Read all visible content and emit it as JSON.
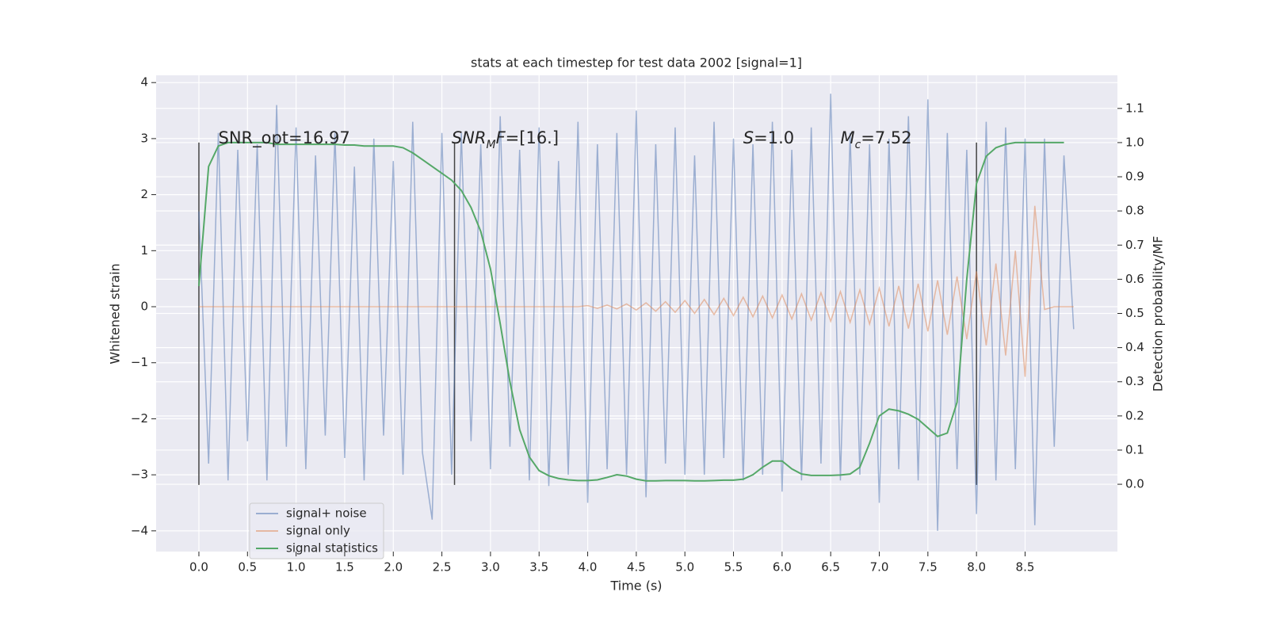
{
  "chart_data": {
    "type": "line",
    "title": "stats at each timestep for test data 2002 [signal=1]",
    "xlabel": "Time (s)",
    "ylabel": "Whitened strain",
    "y2label": "Detection probability/MF",
    "xlim": [
      -0.44,
      9.45
    ],
    "ylim": [
      -4.37,
      4.13
    ],
    "y2lim": [
      -0.197,
      1.197
    ],
    "xticks": [
      {
        "value": 0,
        "label": "0.0"
      },
      {
        "value": 0.5,
        "label": "0.5"
      },
      {
        "value": 1,
        "label": "1.0"
      },
      {
        "value": 1.5,
        "label": "1.5"
      },
      {
        "value": 2,
        "label": "2.0"
      },
      {
        "value": 2.5,
        "label": "2.5"
      },
      {
        "value": 3,
        "label": "3.0"
      },
      {
        "value": 3.5,
        "label": "3.5"
      },
      {
        "value": 4,
        "label": "4.0"
      },
      {
        "value": 4.5,
        "label": "4.5"
      },
      {
        "value": 5,
        "label": "5.0"
      },
      {
        "value": 5.5,
        "label": "5.5"
      },
      {
        "value": 6,
        "label": "6.0"
      },
      {
        "value": 6.5,
        "label": "6.5"
      },
      {
        "value": 7,
        "label": "7.0"
      },
      {
        "value": 7.5,
        "label": "7.5"
      },
      {
        "value": 8,
        "label": "8.0"
      },
      {
        "value": 8.5,
        "label": "8.5"
      }
    ],
    "yticks": [
      {
        "value": -4,
        "label": "−4"
      },
      {
        "value": -3,
        "label": "−3"
      },
      {
        "value": -2,
        "label": "−2"
      },
      {
        "value": -1,
        "label": "−1"
      },
      0,
      1,
      2,
      3,
      4
    ],
    "y2ticks": [
      {
        "value": 0,
        "label": "0.0"
      },
      {
        "value": 0.1,
        "label": "0.1"
      },
      {
        "value": 0.2,
        "label": "0.2"
      },
      {
        "value": 0.3,
        "label": "0.3"
      },
      {
        "value": 0.4,
        "label": "0.4"
      },
      {
        "value": 0.5,
        "label": "0.5"
      },
      {
        "value": 0.6,
        "label": "0.6"
      },
      {
        "value": 0.7,
        "label": "0.7"
      },
      {
        "value": 0.8,
        "label": "0.8"
      },
      {
        "value": 0.9,
        "label": "0.9"
      },
      {
        "value": 1,
        "label": "1.0"
      },
      {
        "value": 1.1,
        "label": "1.1"
      }
    ],
    "grid": true,
    "legend": "lower left",
    "x": [
      0,
      0.1,
      0.2,
      0.3,
      0.4,
      0.5,
      0.6,
      0.7,
      0.8,
      0.9,
      1,
      1.1,
      1.2,
      1.3,
      1.4,
      1.5,
      1.6,
      1.7,
      1.8,
      1.9,
      2,
      2.1,
      2.2,
      2.3,
      2.4,
      2.5,
      2.6,
      2.7,
      2.8,
      2.9,
      3,
      3.1,
      3.2,
      3.3,
      3.4,
      3.5,
      3.6,
      3.7,
      3.8,
      3.9,
      4,
      4.1,
      4.2,
      4.3,
      4.4,
      4.5,
      4.6,
      4.7,
      4.8,
      4.9,
      5,
      5.1,
      5.2,
      5.3,
      5.4,
      5.5,
      5.6,
      5.7,
      5.8,
      5.9,
      6,
      6.1,
      6.2,
      6.3,
      6.4,
      6.5,
      6.6,
      6.7,
      6.8,
      6.9,
      7,
      7.1,
      7.2,
      7.3,
      7.4,
      7.5,
      7.6,
      7.7,
      7.8,
      7.9,
      8,
      8.1,
      8.2,
      8.3,
      8.4,
      8.5,
      8.6,
      8.7,
      8.8,
      8.9,
      9
    ],
    "series": [
      {
        "name": "signal+ noise",
        "color": "#4c72b0",
        "opacity": 0.5,
        "values": [
          1.7,
          -2.8,
          3.1,
          -3.1,
          2.8,
          -2.4,
          2.9,
          -3.1,
          3.6,
          -2.5,
          3.2,
          -2.9,
          2.7,
          -2.3,
          3.1,
          -2.7,
          2.5,
          -3.1,
          3.0,
          -2.3,
          2.6,
          -3.0,
          3.3,
          -2.6,
          -3.8,
          3.1,
          -3.0,
          3.1,
          -2.4,
          2.9,
          -2.9,
          3.4,
          -2.5,
          2.8,
          -3.1,
          3.2,
          -3.2,
          2.6,
          -3.0,
          3.3,
          -3.5,
          2.9,
          -2.9,
          3.1,
          -3.0,
          3.5,
          -3.4,
          2.9,
          -2.8,
          3.2,
          -3.0,
          2.7,
          -3.0,
          3.3,
          -2.7,
          3.0,
          -3.1,
          2.9,
          -3.0,
          3.3,
          -3.3,
          2.8,
          -3.1,
          3.2,
          -2.8,
          3.8,
          -3.1,
          3.1,
          -3.0,
          2.9,
          -3.5,
          3.0,
          -2.9,
          3.4,
          -3.1,
          3.7,
          -4.0,
          3.1,
          -2.9,
          2.8,
          -3.7,
          3.3,
          -3.1,
          3.2,
          -2.9,
          3.0,
          -3.9,
          3.0,
          -2.5,
          2.7,
          -0.4
        ]
      },
      {
        "name": "signal only",
        "color": "#dd8452",
        "opacity": 0.5,
        "values": [
          0,
          0,
          0,
          0,
          0,
          0,
          0,
          0,
          0,
          0,
          0,
          0,
          0,
          0,
          0,
          0,
          0,
          0,
          0,
          0,
          0,
          0,
          0,
          0,
          0,
          0,
          0,
          0,
          0,
          0,
          0,
          0,
          0,
          0,
          0,
          0,
          0,
          0,
          0,
          0,
          0.02,
          -0.03,
          0.03,
          -0.04,
          0.05,
          -0.06,
          0.07,
          -0.08,
          0.09,
          -0.1,
          0.11,
          -0.12,
          0.13,
          -0.14,
          0.15,
          -0.16,
          0.17,
          -0.18,
          0.19,
          -0.2,
          0.21,
          -0.22,
          0.23,
          -0.24,
          0.25,
          -0.26,
          0.27,
          -0.28,
          0.3,
          -0.31,
          0.33,
          -0.35,
          0.37,
          -0.39,
          0.41,
          -0.44,
          0.47,
          -0.5,
          0.54,
          -0.58,
          0.63,
          -0.69,
          0.77,
          -0.87,
          1.0,
          -1.25,
          1.8,
          -0.05,
          0,
          0,
          0
        ]
      },
      {
        "name": "signal statistics",
        "color": "#55a868",
        "opacity": 1,
        "axis": "y2",
        "values": [
          0.58,
          0.93,
          0.99,
          1.0,
          1.0,
          1.0,
          1.0,
          1.0,
          0.995,
          0.995,
          0.995,
          0.995,
          0.995,
          0.995,
          0.995,
          0.993,
          0.993,
          0.99,
          0.99,
          0.99,
          0.99,
          0.985,
          0.97,
          0.95,
          0.93,
          0.91,
          0.89,
          0.86,
          0.81,
          0.74,
          0.63,
          0.47,
          0.3,
          0.16,
          0.08,
          0.04,
          0.025,
          0.017,
          0.013,
          0.011,
          0.011,
          0.013,
          0.02,
          0.028,
          0.024,
          0.015,
          0.01,
          0.01,
          0.011,
          0.011,
          0.011,
          0.01,
          0.01,
          0.011,
          0.012,
          0.012,
          0.015,
          0.028,
          0.05,
          0.068,
          0.068,
          0.045,
          0.03,
          0.026,
          0.026,
          0.026,
          0.027,
          0.03,
          0.05,
          0.12,
          0.2,
          0.22,
          0.215,
          0.205,
          0.19,
          0.165,
          0.14,
          0.15,
          0.24,
          0.6,
          0.88,
          0.96,
          0.985,
          0.995,
          1.0,
          1.0,
          1.0,
          1.0,
          1.0,
          1.0,
          null
        ]
      }
    ],
    "vlines": [
      {
        "x": 0,
        "ymin": -3.18,
        "ymax": 2.93
      },
      {
        "x": 2.63,
        "ymin": -3.18,
        "ymax": 2.93
      },
      {
        "x": 8.0,
        "ymin": -3.18,
        "ymax": 2.93
      }
    ],
    "vline_color": "#444444",
    "annotations": [
      {
        "x": 0.2,
        "y": 3.0,
        "parts": [
          {
            "t": "SNR_opt=16.97"
          }
        ]
      },
      {
        "x": 2.6,
        "y": 3.0,
        "parts": [
          {
            "t": "SNR",
            "i": true
          },
          {
            "t": "M",
            "i": true,
            "sub": true
          },
          {
            "t": "F",
            "i": true
          },
          {
            "t": "=[16.]"
          }
        ]
      },
      {
        "x": 5.6,
        "y": 3.0,
        "parts": [
          {
            "t": "S",
            "i": true
          },
          {
            "t": "=1.0"
          }
        ]
      },
      {
        "x": 6.6,
        "y": 3.0,
        "parts": [
          {
            "t": "M",
            "i": true
          },
          {
            "t": "c",
            "i": true,
            "sub": true
          },
          {
            "t": "=7.52"
          }
        ]
      }
    ]
  }
}
